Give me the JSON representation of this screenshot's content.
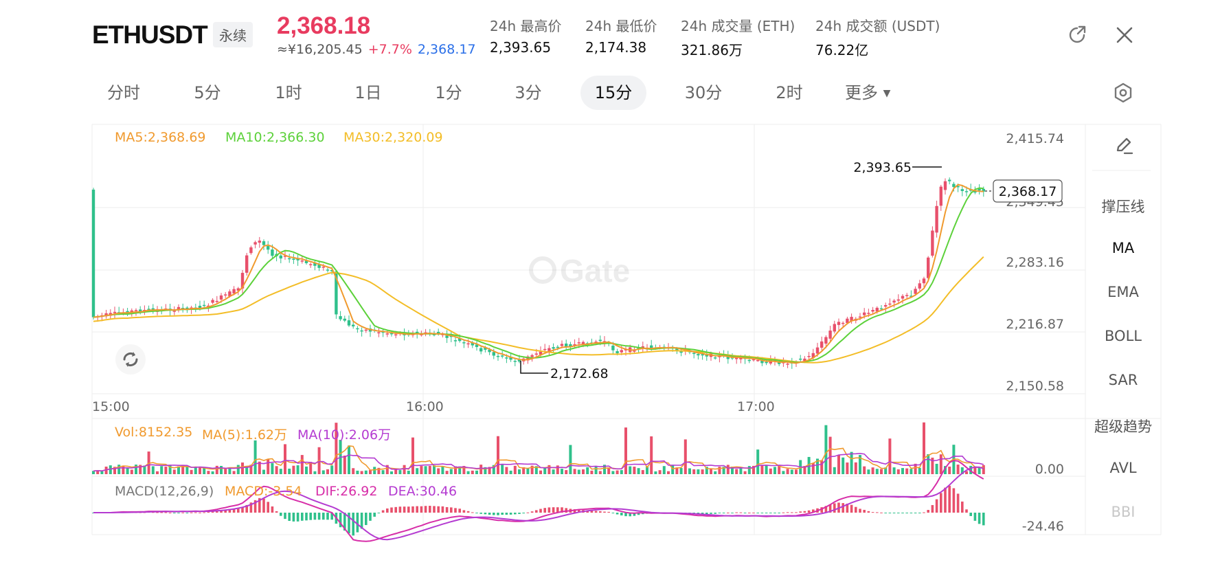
{
  "header": {
    "symbol": "ETHUSDT",
    "contract_type": "永续",
    "last_price": "2,368.18",
    "cny_price": "≈¥16,205.45",
    "change_pct": "+7.7%",
    "mark_price": "2,368.17",
    "stats": [
      {
        "label": "24h 最高价",
        "value": "2,393.65"
      },
      {
        "label": "24h 最低价",
        "value": "2,174.38"
      },
      {
        "label": "24h 成交量 (ETH)",
        "value": "321.86万"
      },
      {
        "label": "24h 成交额 (USDT)",
        "value": "76.22亿"
      }
    ],
    "icons": {
      "share": "share-icon",
      "close": "close-icon"
    }
  },
  "tabs": [
    {
      "label": "分时"
    },
    {
      "label": "5分"
    },
    {
      "label": "1时"
    },
    {
      "label": "1日"
    },
    {
      "label": "1分"
    },
    {
      "label": "3分"
    },
    {
      "label": "15分",
      "active": true
    },
    {
      "label": "30分"
    },
    {
      "label": "2时"
    },
    {
      "label": "更多"
    }
  ],
  "indicators_side": {
    "items": [
      {
        "label": "撑压线"
      },
      {
        "label": "MA",
        "active": true
      },
      {
        "label": "EMA"
      },
      {
        "label": "BOLL"
      },
      {
        "label": "SAR"
      },
      {
        "label": "超级趋势"
      },
      {
        "label": "AVL"
      },
      {
        "label": "BBI",
        "faded": true
      }
    ]
  },
  "legends": {
    "ma5": "MA5:2,368.69",
    "ma10": "MA10:2,366.30",
    "ma30": "MA30:2,320.09",
    "vol": "Vol:8152.35",
    "vol_ma5": "MA(5):1.62万",
    "vol_ma10": "MA(10):2.06万",
    "macd_title": "MACD(12,26,9)",
    "macd": "MACD:-3.54",
    "dif": "DIF:26.92",
    "dea": "DEA:30.46"
  },
  "colors": {
    "up": "#e8506b",
    "down": "#2fc08b",
    "ma5": "#f09a2e",
    "ma10": "#5cd13a",
    "ma30": "#f3bd27",
    "purple": "#b43bd1",
    "magenta": "#d72ea8",
    "grid": "#eeeeee"
  },
  "chart_data": {
    "type": "candlestick",
    "y_axis_labels": [
      "2,415.74",
      "2,349.45",
      "2,283.16",
      "2,216.87",
      "2,150.58"
    ],
    "ylim": [
      2150.58,
      2415.74
    ],
    "x_axis_labels": [
      "15:00",
      "16:00",
      "17:00"
    ],
    "current_price_label": "2,368.17",
    "high_label": "2,393.65",
    "low_label": "2,172.68",
    "volume_axis_label": "0.00",
    "macd_axis_label": "-24.46",
    "watermark": "Gate"
  }
}
